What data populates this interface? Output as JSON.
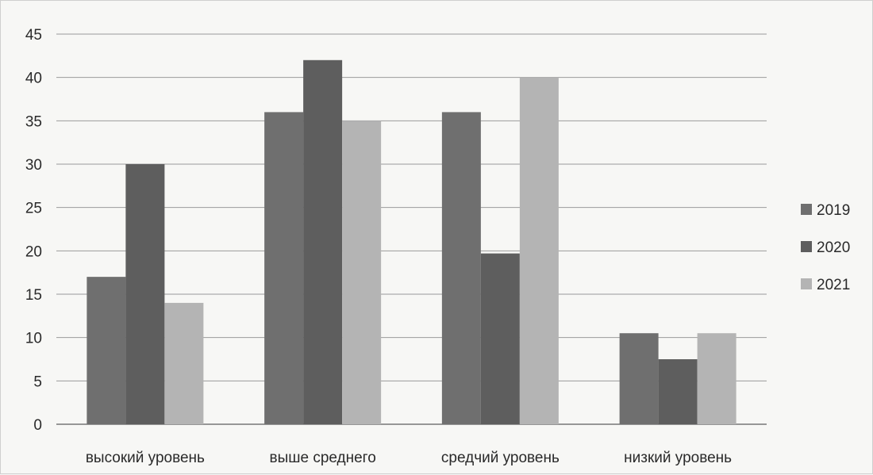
{
  "chart_data": {
    "type": "bar",
    "categories": [
      "высокий уровень",
      "выше среднего",
      "средчий уровень",
      "низкий уровень"
    ],
    "series": [
      {
        "name": "2019",
        "values": [
          17,
          36,
          36,
          10.5
        ],
        "color": "#6f6f6f"
      },
      {
        "name": "2020",
        "values": [
          30,
          42,
          19.7,
          7.5
        ],
        "color": "#5e5e5e"
      },
      {
        "name": "2021",
        "values": [
          14,
          35,
          40,
          10.5
        ],
        "color": "#b4b4b4"
      }
    ],
    "ylim": [
      0,
      45
    ],
    "yticks": [
      0,
      5,
      10,
      15,
      20,
      25,
      30,
      35,
      40,
      45
    ],
    "grid": true,
    "legend_position": "right"
  }
}
